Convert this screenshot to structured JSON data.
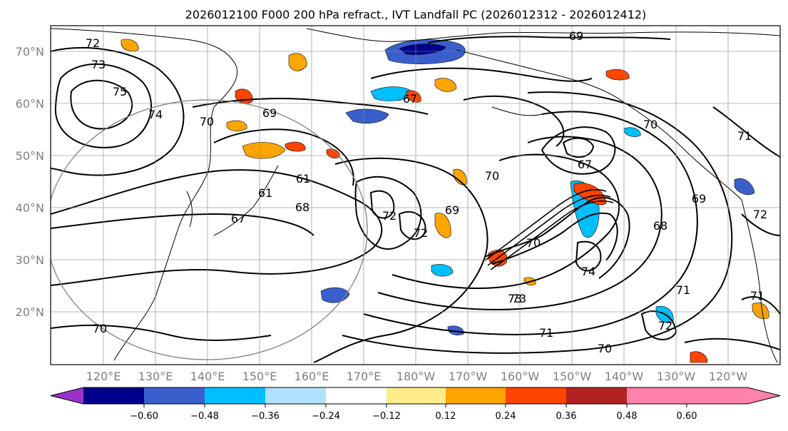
{
  "title": "2026012100 F000 200 hPa refract., IVT Landfall PC (2026012312 - 2026012412)",
  "lat_labels": [
    "70°N",
    "60°N",
    "50°N",
    "40°N",
    "30°N",
    "20°N"
  ],
  "lon_labels": [
    "120°E",
    "130°E",
    "140°E",
    "150°E",
    "160°E",
    "170°E",
    "180°W",
    "170°W",
    "160°W",
    "150°W",
    "140°W",
    "130°W",
    "120°W"
  ],
  "contour_labels": [
    "72",
    "73",
    "75",
    "74",
    "70",
    "69",
    "67",
    "69",
    "61",
    "61",
    "68",
    "67",
    "70",
    "72",
    "72",
    "69",
    "73",
    "70",
    "67",
    "71",
    "69",
    "68",
    "72",
    "74",
    "71",
    "73",
    "71",
    "70",
    "72",
    "71",
    "70",
    "70"
  ],
  "colorbar": {
    "ticks": [
      "−0.60",
      "−0.48",
      "−0.36",
      "−0.24",
      "−0.12",
      "0.12",
      "0.24",
      "0.36",
      "0.48",
      "0.60"
    ],
    "colors": [
      "#9932cc",
      "#00008b",
      "#3a5fcd",
      "#00bfff",
      "#b0e2ff",
      "#ffffff",
      "#ffec8b",
      "#ffa500",
      "#ff4500",
      "#b22222",
      "#ff82ab"
    ]
  }
}
